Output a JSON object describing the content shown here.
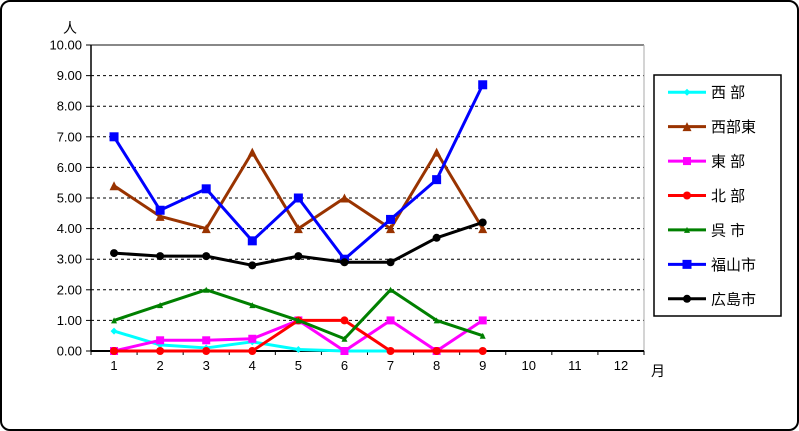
{
  "chart_data": {
    "type": "line",
    "title": "",
    "ylabel": "人",
    "xlabel": "月",
    "ylim": [
      0,
      10
    ],
    "y_tick_step": 1,
    "y_tick_decimals": 2,
    "categories": [
      1,
      2,
      3,
      4,
      5,
      6,
      7,
      8,
      9,
      10,
      11,
      12
    ],
    "grid": "horizontal-dashed",
    "legend_position": "right",
    "series": [
      {
        "id": "seibu",
        "name": "西 部",
        "color": "#00FFFF",
        "marker": "diamond",
        "marker_size": 7,
        "values": [
          0.65,
          0.2,
          0.1,
          0.3,
          0.05,
          0,
          0,
          0,
          0
        ]
      },
      {
        "id": "seibuhigashi",
        "name": "西部東",
        "color": "#993300",
        "marker": "triangle",
        "marker_size": 9,
        "values": [
          5.4,
          4.4,
          4.0,
          6.5,
          4.0,
          5.0,
          4.0,
          6.5,
          4.0
        ]
      },
      {
        "id": "tobu",
        "name": "東 部",
        "color": "#FF00FF",
        "marker": "square",
        "marker_size": 8,
        "values": [
          0,
          0.35,
          0.35,
          0.4,
          1.0,
          0,
          1.0,
          0,
          1.0
        ]
      },
      {
        "id": "hokubu",
        "name": "北 部",
        "color": "#FF0000",
        "marker": "circle",
        "marker_size": 8,
        "values": [
          0,
          0,
          0,
          0,
          1.0,
          1.0,
          0,
          0,
          0
        ]
      },
      {
        "id": "kure",
        "name": "呉 市",
        "color": "#008000",
        "marker": "triangle",
        "marker_size": 6,
        "values": [
          1.0,
          1.5,
          2.0,
          1.5,
          1.0,
          0.4,
          2.0,
          1.0,
          0.5
        ]
      },
      {
        "id": "fukuyama",
        "name": "福山市",
        "color": "#0000FF",
        "marker": "square",
        "marker_size": 9,
        "values": [
          7.0,
          4.6,
          5.3,
          3.6,
          5.0,
          3.0,
          4.3,
          5.6,
          8.7
        ]
      },
      {
        "id": "hiroshima",
        "name": "広島市",
        "color": "#000000",
        "marker": "circle",
        "marker_size": 8,
        "values": [
          3.2,
          3.1,
          3.1,
          2.8,
          3.1,
          2.9,
          2.9,
          3.7,
          4.2
        ]
      }
    ]
  }
}
